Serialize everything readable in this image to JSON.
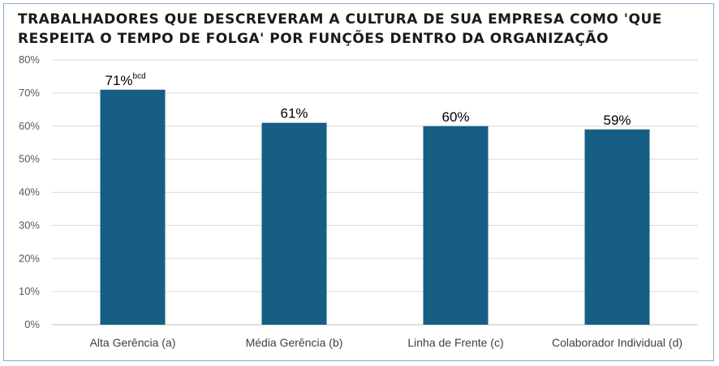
{
  "chart_data": {
    "type": "bar",
    "title": "TRABALHADORES QUE DESCREVERAM A CULTURA DE SUA EMPRESA COMO 'QUE RESPEITA O TEMPO DE FOLGA' POR FUNÇÕES DENTRO DA ORGANIZAÇÃO",
    "categories": [
      "Alta Gerência (a)",
      "Média Gerência (b)",
      "Linha de Frente (c)",
      "Colaborador Individual (d)"
    ],
    "values": [
      71,
      61,
      60,
      59
    ],
    "data_labels": [
      "71%",
      "61%",
      "60%",
      "59%"
    ],
    "data_label_superscripts": [
      "bcd",
      "",
      "",
      ""
    ],
    "y_ticks": [
      "0%",
      "10%",
      "20%",
      "30%",
      "40%",
      "50%",
      "60%",
      "70%",
      "80%"
    ],
    "ylim": [
      0,
      80
    ],
    "unit": "%",
    "grid": true,
    "legend": "none",
    "bar_color": "#165e83",
    "grid_color": "#d9d9d9"
  }
}
